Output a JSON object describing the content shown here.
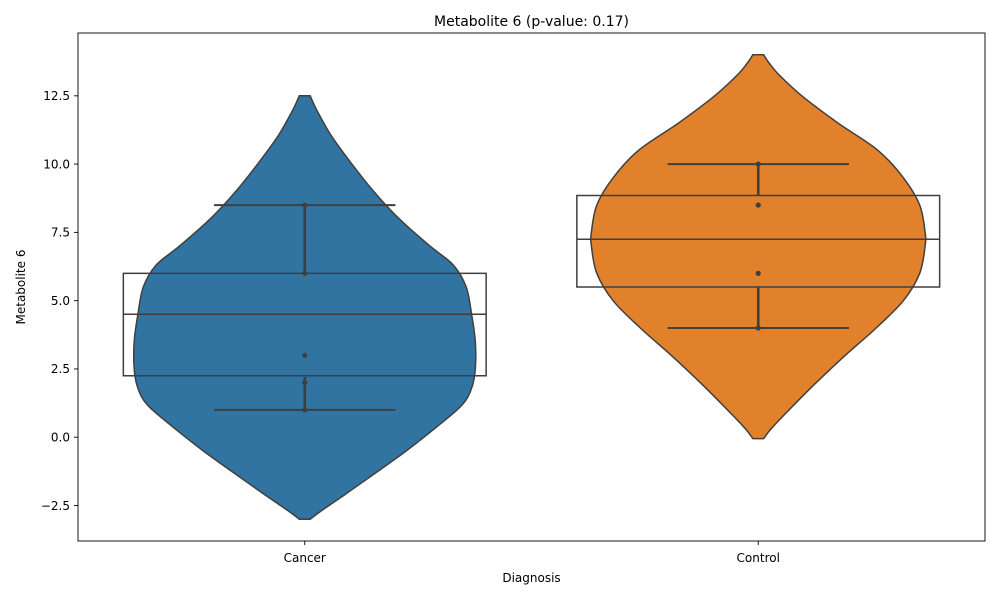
{
  "chart_data": {
    "type": "violin",
    "title": "Metabolite 6 (p-value: 0.17)",
    "xlabel": "Diagnosis",
    "ylabel": "Metabolite 6",
    "categories": [
      "Cancer",
      "Control"
    ],
    "ylim": [
      -3.8,
      14.8
    ],
    "yticks": [
      -2.5,
      0.0,
      2.5,
      5.0,
      7.5,
      10.0,
      12.5
    ],
    "ytick_labels": [
      "−2.5",
      "0.0",
      "2.5",
      "5.0",
      "7.5",
      "10.0",
      "12.5"
    ],
    "grid": false,
    "series": [
      {
        "category": "Cancer",
        "color": "#3274a1",
        "points": [
          1.0,
          2.0,
          3.0,
          6.0,
          8.5
        ],
        "box": {
          "q1": 2.25,
          "median": 4.5,
          "q3": 6.0
        },
        "ci_segments": [
          [
            1.0,
            2.2
          ],
          [
            6.0,
            8.5
          ]
        ],
        "caps": [
          1.0,
          8.5
        ],
        "violin_range": [
          -3.0,
          12.5
        ],
        "violin_profile": [
          [
            -3.0,
            0.03
          ],
          [
            -2.7,
            0.09
          ],
          [
            -2.2,
            0.2
          ],
          [
            -1.5,
            0.35
          ],
          [
            -0.5,
            0.56
          ],
          [
            0.5,
            0.75
          ],
          [
            1.2,
            0.87
          ],
          [
            1.8,
            0.92
          ],
          [
            2.5,
            0.94
          ],
          [
            3.5,
            0.94
          ],
          [
            4.5,
            0.92
          ],
          [
            5.5,
            0.89
          ],
          [
            6.3,
            0.82
          ],
          [
            7.0,
            0.69
          ],
          [
            8.0,
            0.52
          ],
          [
            9.0,
            0.38
          ],
          [
            10.0,
            0.26
          ],
          [
            11.0,
            0.15
          ],
          [
            11.8,
            0.08
          ],
          [
            12.2,
            0.05
          ],
          [
            12.5,
            0.03
          ]
        ]
      },
      {
        "category": "Control",
        "color": "#e1812c",
        "points": [
          4.0,
          6.0,
          8.5,
          10.0
        ],
        "box": {
          "q1": 5.5,
          "median": 7.25,
          "q3": 8.85
        },
        "ci_segments": [
          [
            4.0,
            5.5
          ],
          [
            8.85,
            10.0
          ]
        ],
        "caps": [
          4.0,
          10.0
        ],
        "violin_range": [
          -0.05,
          14.0
        ],
        "violin_profile": [
          [
            -0.05,
            0.03
          ],
          [
            0.3,
            0.07
          ],
          [
            1.0,
            0.17
          ],
          [
            2.0,
            0.32
          ],
          [
            3.0,
            0.48
          ],
          [
            4.0,
            0.65
          ],
          [
            5.0,
            0.8
          ],
          [
            6.0,
            0.89
          ],
          [
            7.0,
            0.92
          ],
          [
            7.5,
            0.92
          ],
          [
            8.5,
            0.89
          ],
          [
            9.5,
            0.8
          ],
          [
            10.5,
            0.66
          ],
          [
            11.5,
            0.44
          ],
          [
            12.5,
            0.24
          ],
          [
            13.3,
            0.11
          ],
          [
            13.7,
            0.06
          ],
          [
            14.0,
            0.03
          ]
        ]
      }
    ]
  }
}
